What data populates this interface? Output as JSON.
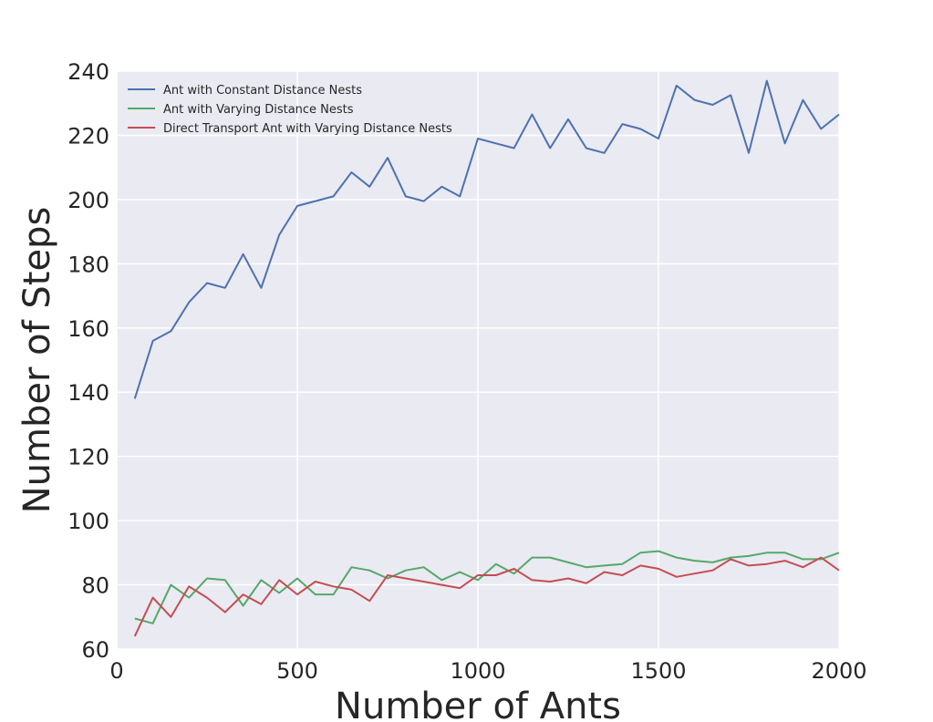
{
  "chart_data": {
    "type": "line",
    "title": "",
    "xlabel": "Number of Ants",
    "ylabel": "Number of Steps",
    "xlim": [
      0,
      2000
    ],
    "ylim": [
      60,
      240
    ],
    "xticks": [
      0,
      500,
      1000,
      1500,
      2000
    ],
    "yticks": [
      60,
      80,
      100,
      120,
      140,
      160,
      180,
      200,
      220,
      240
    ],
    "grid": true,
    "legend_position": "top-left",
    "x": [
      50,
      100,
      150,
      200,
      250,
      300,
      350,
      400,
      450,
      500,
      550,
      600,
      650,
      700,
      750,
      800,
      850,
      900,
      950,
      1000,
      1050,
      1100,
      1150,
      1200,
      1250,
      1300,
      1350,
      1400,
      1450,
      1500,
      1550,
      1600,
      1650,
      1700,
      1750,
      1800,
      1850,
      1900,
      1950,
      2000
    ],
    "series": [
      {
        "name": "Ant with Constant Distance Nests",
        "color": "#4c72b0",
        "values": [
          138,
          156,
          159,
          168,
          174,
          172.5,
          183,
          172.5,
          189,
          198,
          199.5,
          201,
          208.5,
          204,
          213,
          201,
          199.5,
          204,
          201,
          219,
          217.5,
          216,
          226.5,
          216,
          225,
          216,
          214.5,
          223.5,
          222,
          219,
          235.5,
          231,
          229.5,
          232.5,
          214.5,
          237,
          217.5,
          231,
          222,
          226.5
        ]
      },
      {
        "name": "Ant with Varying Distance Nests",
        "color": "#55a868",
        "values": [
          69.5,
          68,
          80,
          76,
          82,
          81.5,
          73.5,
          81.5,
          77.5,
          82,
          77,
          77,
          85.5,
          84.5,
          82,
          84.5,
          85.5,
          81.5,
          84,
          81.5,
          86.5,
          83.5,
          88.5,
          88.5,
          87,
          85.5,
          86,
          86.5,
          90,
          90.5,
          88.5,
          87.5,
          87,
          88.5,
          89,
          90,
          90,
          88,
          88,
          90
        ]
      },
      {
        "name": "Direct Transport Ant with Varying Distance Nests",
        "color": "#c44e52",
        "values": [
          64,
          76,
          70,
          79.5,
          76,
          71.5,
          77,
          74,
          81.5,
          77,
          81,
          79.5,
          78.5,
          75,
          83,
          82,
          81,
          80,
          79,
          83,
          83,
          85,
          81.5,
          81,
          82,
          80.5,
          84,
          83,
          86,
          85,
          82.5,
          83.5,
          84.5,
          88,
          86,
          86.5,
          87.5,
          85.5,
          88.5,
          84.5
        ]
      }
    ]
  }
}
